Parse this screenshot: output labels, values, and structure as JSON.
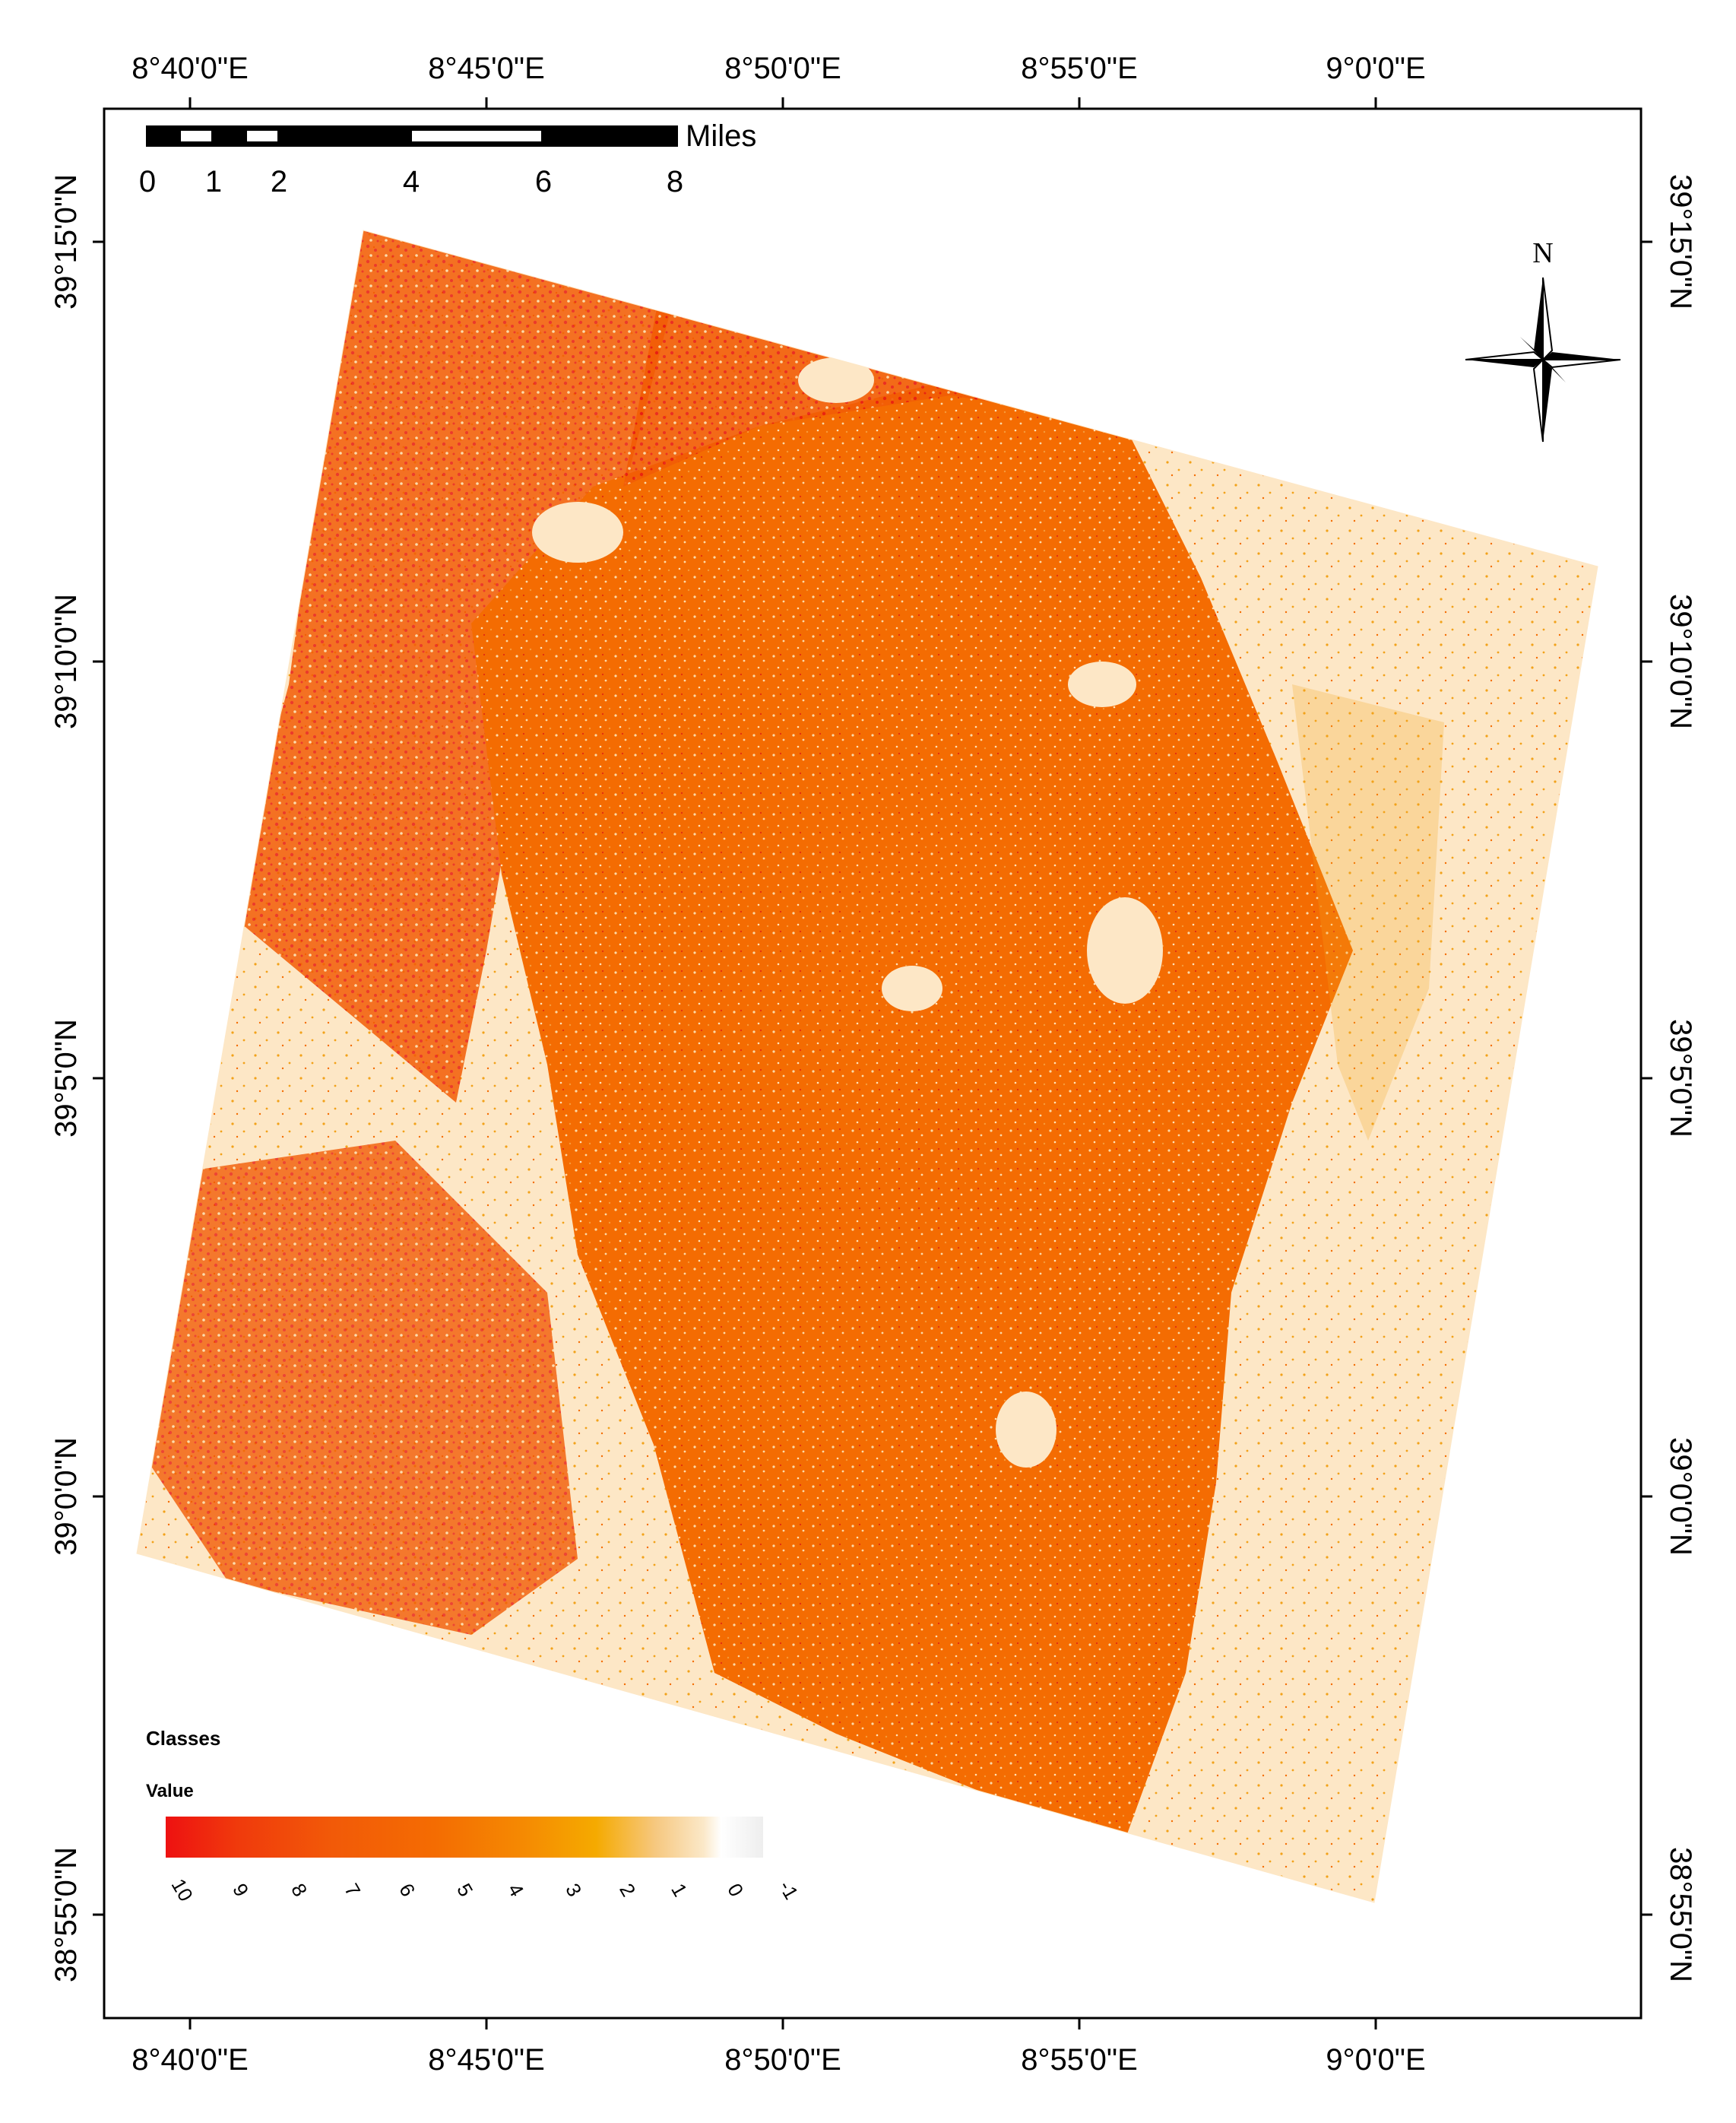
{
  "map": {
    "top_longitude_labels": [
      "8°40'0\"E",
      "8°45'0\"E",
      "8°50'0\"E",
      "8°55'0\"E",
      "9°0'0\"E"
    ],
    "bottom_longitude_labels": [
      "8°40'0\"E",
      "8°45'0\"E",
      "8°50'0\"E",
      "8°55'0\"E",
      "9°0'0\"E"
    ],
    "left_latitude_labels": [
      "39°15'0\"N",
      "39°10'0\"N",
      "39°5'0\"N",
      "39°0'0\"N",
      "38°55'0\"N"
    ],
    "right_latitude_labels": [
      "39°15'0\"N",
      "39°10'0\"N",
      "39°5'0\"N",
      "39°0'0\"N",
      "38°55'0\"N"
    ],
    "north_arrow": {
      "label": "N",
      "icon": "north-arrow-icon"
    },
    "scale_bar": {
      "unit": "Miles",
      "labels": [
        "0",
        "1",
        "2",
        "4",
        "6",
        "8"
      ]
    },
    "legend": {
      "title": "Classes",
      "subtitle": "Value",
      "tick_labels": [
        "10",
        "9",
        "8",
        "7",
        "6",
        "5",
        "4",
        "3",
        "2",
        "1",
        "0",
        "-1"
      ],
      "ramp_colors": [
        "#ee1111",
        "#f03a0c",
        "#f25a08",
        "#f46a02",
        "#f58a02",
        "#f5aa00",
        "#f6c880",
        "#fbe8c8",
        "#ffffff",
        "#eeeeee"
      ]
    },
    "class_colors": {
      "high": "#e81c10",
      "mid_high": "#f25c05",
      "mid": "#f46c02",
      "low": "#f2a21a",
      "background": "#fde7c6"
    }
  }
}
